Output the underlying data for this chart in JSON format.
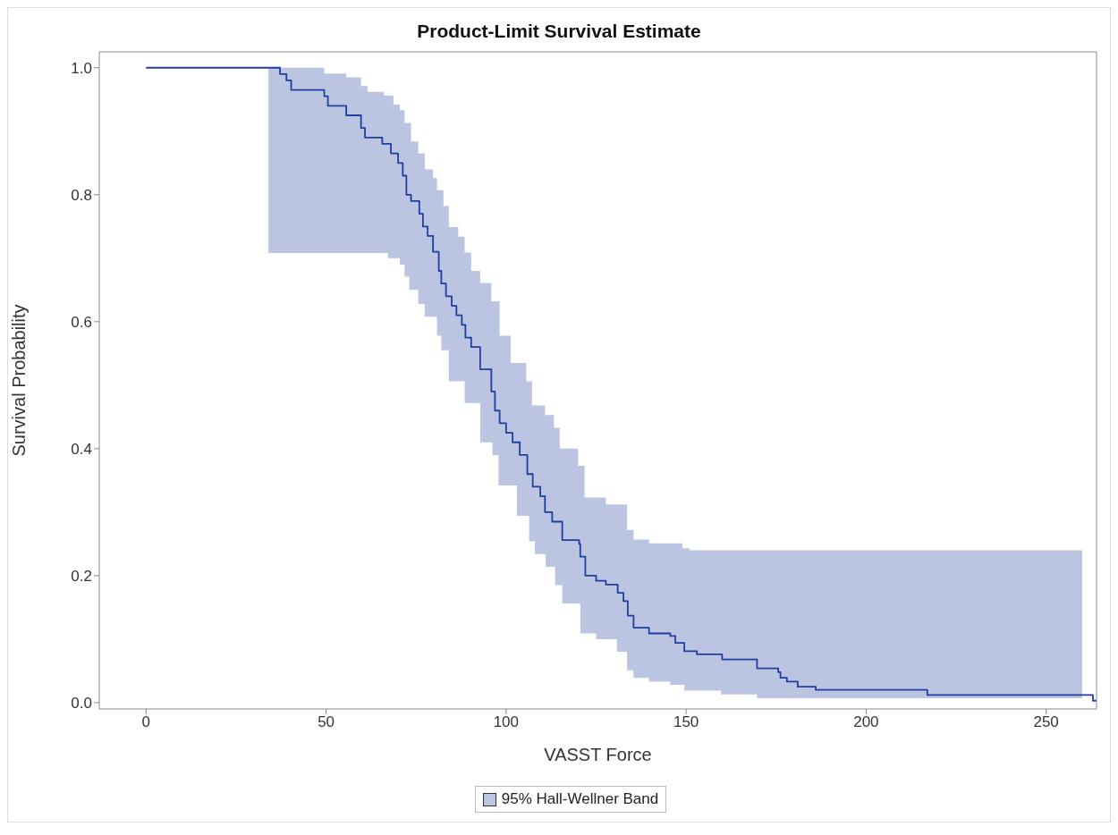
{
  "chart_data": {
    "type": "step",
    "title": "Product-Limit Survival Estimate",
    "xlabel": "VASST Force",
    "ylabel": "Survival Probability",
    "xlim": [
      -13,
      264
    ],
    "xticks": [
      0,
      50,
      100,
      150,
      200,
      250
    ],
    "ylim": [
      -0.01,
      1.025
    ],
    "yticks": [
      {
        "value": 0,
        "label": "0.0"
      },
      {
        "value": 0.2,
        "label": "0.2"
      },
      {
        "value": 0.4,
        "label": "0.4"
      },
      {
        "value": 0.6,
        "label": "0.6"
      },
      {
        "value": 0.8,
        "label": "0.8"
      },
      {
        "value": 1,
        "label": "1.0"
      }
    ],
    "grid": false,
    "legend": "bottom",
    "marker": "none",
    "series": [
      {
        "name": "95% Hall-Wellner Band",
        "color": "#1f3f9f",
        "x": [
          0,
          34,
          37.2,
          39,
          40.3,
          49.5,
          50.5,
          55.6,
          59.7,
          60.8,
          61.5,
          65.6,
          66.1,
          67.2,
          68,
          68.7,
          70,
          70.5,
          71.3,
          71.8,
          72.3,
          73.1,
          73.6,
          75.6,
          75.9,
          76.9,
          77.4,
          78.2,
          79.7,
          80.8,
          81.3,
          82,
          82.6,
          83.3,
          84.1,
          84.9,
          86.2,
          86.7,
          87.7,
          88.5,
          88.7,
          90.3,
          92.8,
          95.9,
          96.2,
          96.9,
          97.9,
          98.2,
          100,
          101.3,
          101.8,
          103,
          103.8,
          105.6,
          105.9,
          106.4,
          107.2,
          107.4,
          108,
          109.5,
          110.8,
          111,
          112.8,
          113.3,
          113.6,
          114.9,
          115.6,
          120,
          120.3,
          120.6,
          121.8,
          122,
          125,
          127.7,
          130.8,
          131,
          132.6,
          133.6,
          133.8,
          135.4,
          139.7,
          145.6,
          147,
          149,
          149.5,
          151,
          153,
          159.7,
          160,
          169.7,
          175.6,
          176.2,
          178,
          181,
          186,
          217,
          260,
          263,
          264
        ],
        "values": [
          1,
          1,
          0.99,
          0.98,
          0.965,
          0.955,
          0.94,
          0.925,
          0.905,
          0.89,
          0.89,
          0.88,
          0.88,
          0.88,
          0.865,
          0.865,
          0.85,
          0.85,
          0.83,
          0.83,
          0.8,
          0.8,
          0.79,
          0.79,
          0.77,
          0.75,
          0.75,
          0.735,
          0.71,
          0.71,
          0.68,
          0.66,
          0.66,
          0.64,
          0.64,
          0.625,
          0.61,
          0.61,
          0.595,
          0.595,
          0.575,
          0.56,
          0.525,
          0.49,
          0.49,
          0.46,
          0.46,
          0.44,
          0.425,
          0.425,
          0.41,
          0.41,
          0.39,
          0.39,
          0.36,
          0.36,
          0.36,
          0.34,
          0.34,
          0.325,
          0.3,
          0.3,
          0.285,
          0.285,
          0.285,
          0.285,
          0.256,
          0.256,
          0.25,
          0.23,
          0.23,
          0.2,
          0.192,
          0.186,
          0.186,
          0.173,
          0.16,
          0.16,
          0.137,
          0.118,
          0.109,
          0.105,
          0.094,
          0.094,
          0.081,
          0.081,
          0.076,
          0.076,
          0.068,
          0.054,
          0.048,
          0.039,
          0.033,
          0.025,
          0.02,
          0.012,
          0.012,
          0.003,
          0.003
        ],
        "lower": [
          null,
          0.708,
          0.708,
          0.708,
          0.708,
          0.708,
          0.708,
          0.708,
          0.708,
          0.708,
          0.708,
          0.708,
          0.708,
          0.7,
          0.7,
          0.7,
          0.7,
          0.69,
          0.69,
          0.671,
          0.671,
          0.65,
          0.65,
          0.628,
          0.628,
          0.628,
          0.608,
          0.608,
          0.608,
          0.578,
          0.578,
          0.555,
          0.555,
          0.555,
          0.506,
          0.506,
          0.506,
          0.506,
          0.506,
          0.472,
          0.472,
          0.472,
          0.41,
          0.41,
          0.39,
          0.39,
          0.342,
          0.342,
          0.342,
          0.342,
          0.342,
          0.294,
          0.294,
          0.294,
          0.294,
          0.254,
          0.254,
          0.254,
          0.234,
          0.234,
          0.234,
          0.214,
          0.214,
          0.214,
          0.185,
          0.185,
          0.156,
          0.156,
          0.156,
          0.109,
          0.109,
          0.109,
          0.1,
          0.1,
          0.08,
          0.08,
          0.08,
          0.051,
          0.051,
          0.039,
          0.033,
          0.028,
          0.028,
          0.028,
          0.019,
          0.019,
          0.019,
          0.013,
          0.013,
          0.007,
          0.007,
          0.007,
          0.007,
          0.007,
          0.007,
          0.007,
          0.007,
          null,
          null
        ],
        "upper": [
          null,
          1,
          1,
          1,
          1,
          0.991,
          0.991,
          0.985,
          0.971,
          0.971,
          0.962,
          0.962,
          0.956,
          0.956,
          0.956,
          0.942,
          0.942,
          0.933,
          0.933,
          0.913,
          0.913,
          0.913,
          0.884,
          0.865,
          0.865,
          0.865,
          0.84,
          0.84,
          0.826,
          0.807,
          0.807,
          0.807,
          0.782,
          0.782,
          0.749,
          0.749,
          0.749,
          0.734,
          0.734,
          0.709,
          0.709,
          0.68,
          0.661,
          0.632,
          0.632,
          0.632,
          0.632,
          0.578,
          0.578,
          0.535,
          0.535,
          0.535,
          0.535,
          0.506,
          0.506,
          0.506,
          0.468,
          0.468,
          0.468,
          0.468,
          0.453,
          0.453,
          0.453,
          0.433,
          0.433,
          0.4,
          0.4,
          0.373,
          0.373,
          0.373,
          0.323,
          0.323,
          0.323,
          0.312,
          0.312,
          0.312,
          0.312,
          0.272,
          0.272,
          0.257,
          0.251,
          0.251,
          0.251,
          0.243,
          0.243,
          0.24,
          0.24,
          0.24,
          0.24,
          0.24,
          0.24,
          0.24,
          0.24,
          0.24,
          0.24,
          0.24,
          0.24,
          null,
          null
        ]
      }
    ]
  }
}
